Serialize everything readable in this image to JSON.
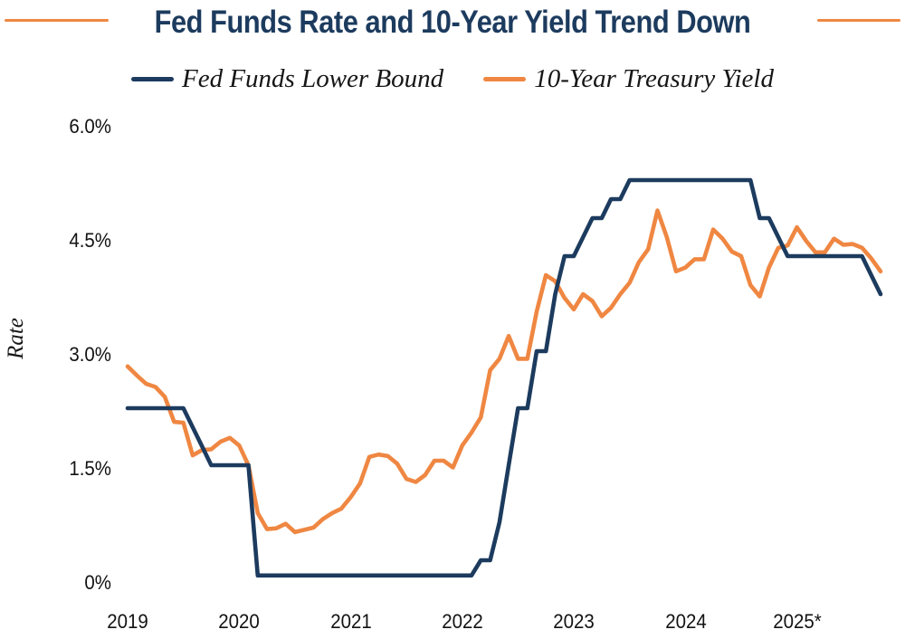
{
  "title": {
    "text": "Fed Funds Rate and 10-Year Yield Trend Down"
  },
  "colors": {
    "navy": "#1C3B5E",
    "orange": "#EF8742",
    "tick_text": "#121212",
    "background": "#FFFFFF"
  },
  "legend": {
    "items": [
      {
        "label": "Fed Funds Lower Bound",
        "color": "#1C3B5E"
      },
      {
        "label": "10-Year Treasury Yield",
        "color": "#EF8742"
      }
    ]
  },
  "y_axis": {
    "label": "Rate",
    "tick_labels": [
      "6.0%",
      "4.5%",
      "3.0%",
      "1.5%",
      "0%"
    ],
    "tick_values": [
      6.0,
      4.5,
      3.0,
      1.5,
      0
    ]
  },
  "x_axis": {
    "tick_labels": [
      "2019",
      "2020",
      "2021",
      "2022",
      "2023",
      "2024",
      "2025*"
    ]
  },
  "chart_data": {
    "type": "line",
    "title": "Fed Funds Rate and 10-Year Yield Trend Down",
    "ylabel": "Rate",
    "ylim": [
      0,
      6
    ],
    "grid": false,
    "legend_position": "top",
    "x_unit": "month",
    "x_start": "2019-01",
    "x_end": "2025-10",
    "x_year_ticks": [
      2019,
      2020,
      2021,
      2022,
      2023,
      2024,
      2025
    ],
    "series": [
      {
        "name": "10-Year Treasury Yield",
        "color": "#EF8742",
        "values": [
          2.8,
          2.68,
          2.57,
          2.53,
          2.4,
          2.07,
          2.06,
          1.63,
          1.7,
          1.71,
          1.81,
          1.86,
          1.76,
          1.5,
          0.87,
          0.66,
          0.67,
          0.73,
          0.62,
          0.65,
          0.68,
          0.79,
          0.87,
          0.93,
          1.08,
          1.26,
          1.61,
          1.64,
          1.62,
          1.52,
          1.32,
          1.28,
          1.37,
          1.56,
          1.56,
          1.47,
          1.76,
          1.93,
          2.13,
          2.75,
          2.9,
          3.2,
          2.9,
          2.9,
          3.52,
          4.0,
          3.92,
          3.7,
          3.55,
          3.75,
          3.66,
          3.46,
          3.57,
          3.75,
          3.9,
          4.17,
          4.34,
          4.85,
          4.5,
          4.05,
          4.1,
          4.21,
          4.21,
          4.6,
          4.48,
          4.31,
          4.25,
          3.87,
          3.72,
          4.1,
          4.36,
          4.39,
          4.63,
          4.45,
          4.3,
          4.3,
          4.48,
          4.4,
          4.41,
          4.36,
          4.22,
          4.05
        ]
      },
      {
        "name": "Fed Funds Lower Bound",
        "color": "#1C3B5E",
        "values": [
          2.25,
          2.25,
          2.25,
          2.25,
          2.25,
          2.25,
          2.25,
          2.0,
          1.75,
          1.5,
          1.5,
          1.5,
          1.5,
          1.5,
          0.05,
          0.05,
          0.05,
          0.05,
          0.05,
          0.05,
          0.05,
          0.05,
          0.05,
          0.05,
          0.05,
          0.05,
          0.05,
          0.05,
          0.05,
          0.05,
          0.05,
          0.05,
          0.05,
          0.05,
          0.05,
          0.05,
          0.05,
          0.05,
          0.25,
          0.25,
          0.75,
          1.5,
          2.25,
          2.25,
          3.0,
          3.0,
          3.75,
          4.25,
          4.25,
          4.5,
          4.75,
          4.75,
          5.0,
          5.0,
          5.25,
          5.25,
          5.25,
          5.25,
          5.25,
          5.25,
          5.25,
          5.25,
          5.25,
          5.25,
          5.25,
          5.25,
          5.25,
          5.25,
          4.75,
          4.75,
          4.5,
          4.25,
          4.25,
          4.25,
          4.25,
          4.25,
          4.25,
          4.25,
          4.25,
          4.25,
          4.0,
          3.75
        ]
      }
    ]
  }
}
